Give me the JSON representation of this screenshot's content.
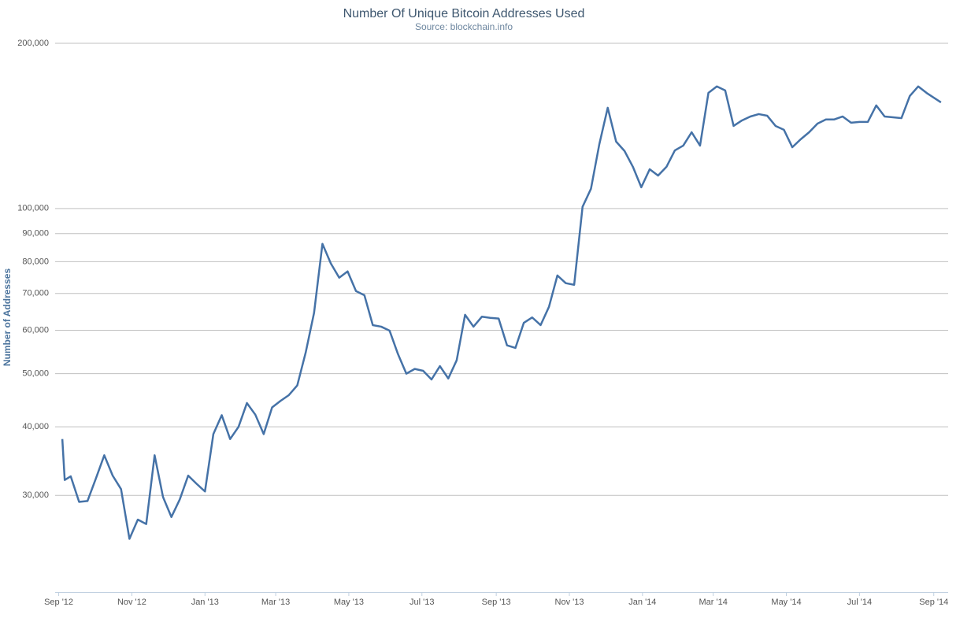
{
  "chart_data": {
    "type": "line",
    "title": "Number Of Unique Bitcoin Addresses Used",
    "subtitle": "Source: blockchain.info",
    "y_label": "Number of Addresses",
    "color": "#4572a7",
    "log_scale": true,
    "grid": true,
    "ylim": [
      20000,
      200000
    ],
    "yticks": [
      {
        "value": 30000,
        "label": "30,000"
      },
      {
        "value": 40000,
        "label": "40,000"
      },
      {
        "value": 50000,
        "label": "50,000"
      },
      {
        "value": 60000,
        "label": "60,000"
      },
      {
        "value": 70000,
        "label": "70,000"
      },
      {
        "value": 80000,
        "label": "80,000"
      },
      {
        "value": 90000,
        "label": "90,000"
      },
      {
        "value": 100000,
        "label": "100,000"
      },
      {
        "value": 200000,
        "label": "200,000"
      }
    ],
    "xlim": [
      "2012-08-29",
      "2014-09-13"
    ],
    "xticks": [
      {
        "value": "2012-09-01",
        "label": "Sep '12"
      },
      {
        "value": "2012-11-01",
        "label": "Nov '12"
      },
      {
        "value": "2013-01-01",
        "label": "Jan '13"
      },
      {
        "value": "2013-03-01",
        "label": "Mar '13"
      },
      {
        "value": "2013-05-01",
        "label": "May '13"
      },
      {
        "value": "2013-07-01",
        "label": "Jul '13"
      },
      {
        "value": "2013-09-01",
        "label": "Sep '13"
      },
      {
        "value": "2013-11-01",
        "label": "Nov '13"
      },
      {
        "value": "2014-01-01",
        "label": "Jan '14"
      },
      {
        "value": "2014-03-01",
        "label": "Mar '14"
      },
      {
        "value": "2014-05-01",
        "label": "May '14"
      },
      {
        "value": "2014-07-01",
        "label": "Jul '14"
      },
      {
        "value": "2014-09-01",
        "label": "Sep '14"
      }
    ],
    "x": [
      "2012-09-04",
      "2012-09-06",
      "2012-09-11",
      "2012-09-18",
      "2012-09-25",
      "2012-10-02",
      "2012-10-09",
      "2012-10-16",
      "2012-10-23",
      "2012-10-30",
      "2012-11-06",
      "2012-11-13",
      "2012-11-20",
      "2012-11-27",
      "2012-12-04",
      "2012-12-11",
      "2012-12-18",
      "2012-12-25",
      "2013-01-01",
      "2013-01-08",
      "2013-01-15",
      "2013-01-22",
      "2013-01-29",
      "2013-02-05",
      "2013-02-12",
      "2013-02-19",
      "2013-02-26",
      "2013-03-05",
      "2013-03-12",
      "2013-03-19",
      "2013-03-26",
      "2013-04-02",
      "2013-04-09",
      "2013-04-16",
      "2013-04-23",
      "2013-04-30",
      "2013-05-07",
      "2013-05-14",
      "2013-05-21",
      "2013-05-28",
      "2013-06-04",
      "2013-06-11",
      "2013-06-18",
      "2013-06-25",
      "2013-07-02",
      "2013-07-09",
      "2013-07-16",
      "2013-07-23",
      "2013-07-30",
      "2013-08-06",
      "2013-08-13",
      "2013-08-20",
      "2013-08-27",
      "2013-09-03",
      "2013-09-10",
      "2013-09-17",
      "2013-09-24",
      "2013-10-01",
      "2013-10-08",
      "2013-10-15",
      "2013-10-22",
      "2013-10-29",
      "2013-11-05",
      "2013-11-12",
      "2013-11-19",
      "2013-11-26",
      "2013-12-03",
      "2013-12-10",
      "2013-12-17",
      "2013-12-24",
      "2013-12-31",
      "2014-01-07",
      "2014-01-14",
      "2014-01-21",
      "2014-01-28",
      "2014-02-04",
      "2014-02-11",
      "2014-02-18",
      "2014-02-25",
      "2014-03-04",
      "2014-03-11",
      "2014-03-18",
      "2014-03-25",
      "2014-04-01",
      "2014-04-08",
      "2014-04-15",
      "2014-04-22",
      "2014-04-29",
      "2014-05-06",
      "2014-05-13",
      "2014-05-20",
      "2014-05-27",
      "2014-06-03",
      "2014-06-10",
      "2014-06-17",
      "2014-06-24",
      "2014-07-01",
      "2014-07-08",
      "2014-07-15",
      "2014-07-22",
      "2014-07-29",
      "2014-08-05",
      "2014-08-12",
      "2014-08-19",
      "2014-08-26",
      "2014-09-02",
      "2014-09-07"
    ],
    "values": [
      38000,
      32000,
      32500,
      29200,
      29300,
      32200,
      35500,
      32600,
      30800,
      25000,
      27100,
      26600,
      35500,
      29800,
      27400,
      29500,
      32600,
      31500,
      30500,
      38800,
      42000,
      38000,
      40000,
      44200,
      42100,
      38800,
      43400,
      44600,
      45700,
      47600,
      54600,
      64500,
      86200,
      79400,
      74800,
      76800,
      70700,
      69500,
      61300,
      60900,
      59900,
      54300,
      50000,
      51000,
      50600,
      48800,
      51600,
      49000,
      52900,
      64000,
      60900,
      63500,
      63200,
      63000,
      56300,
      55700,
      61900,
      63300,
      61300,
      66200,
      75500,
      73100,
      72600,
      100700,
      108600,
      131000,
      152600,
      132400,
      127300,
      119100,
      109300,
      117900,
      114800,
      119100,
      127600,
      130200,
      137700,
      130200,
      162400,
      166900,
      164100,
      141400,
      144700,
      147100,
      148600,
      147600,
      141400,
      139100,
      129300,
      133700,
      137700,
      142800,
      145300,
      145300,
      147100,
      143300,
      143800,
      143800,
      154100,
      147100,
      146600,
      146100,
      160300,
      166900,
      162400,
      158700,
      156100
    ]
  }
}
